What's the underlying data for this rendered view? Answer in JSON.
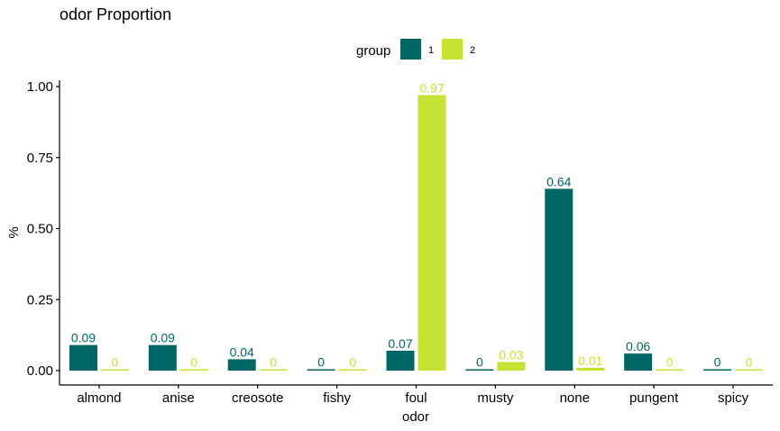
{
  "chart_data": {
    "type": "bar",
    "title": "odor Proportion",
    "xlabel": "odor",
    "ylabel": "%",
    "ylim": [
      -0.04,
      1.02
    ],
    "yticks": [
      0,
      0.25,
      0.5,
      0.75,
      1
    ],
    "ytick_labels": [
      "0.00",
      "0.25",
      "0.50",
      "0.75",
      "1.00"
    ],
    "grid": false,
    "legend": {
      "title": "group",
      "position": "top"
    },
    "categories": [
      "almond",
      "anise",
      "creosote",
      "fishy",
      "foul",
      "musty",
      "none",
      "pungent",
      "spicy"
    ],
    "series": [
      {
        "name": "1",
        "color": "#006666",
        "values": [
          0.09,
          0.09,
          0.04,
          0,
          0.07,
          0,
          0.64,
          0.06,
          0
        ],
        "labels": [
          "0.09",
          "0.09",
          "0.04",
          "0",
          "0.07",
          "0",
          "0.64",
          "0.06",
          "0"
        ]
      },
      {
        "name": "2",
        "color": "#c5e335",
        "values": [
          0,
          0,
          0,
          0,
          0.97,
          0.03,
          0.01,
          0,
          0
        ],
        "labels": [
          "0",
          "0",
          "0",
          "0",
          "0.97",
          "0.03",
          "0.01",
          "0",
          "0"
        ]
      }
    ]
  }
}
